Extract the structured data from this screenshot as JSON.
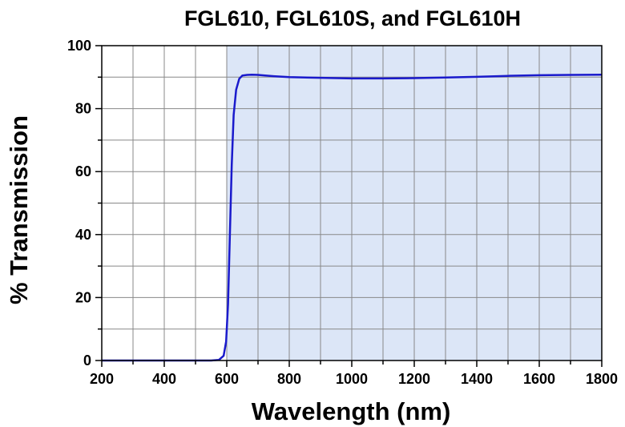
{
  "chart_data": {
    "type": "line",
    "title": "FGL610, FGL610S, and FGL610H",
    "xlabel": "Wavelength (nm)",
    "ylabel": "% Transmission",
    "xlim": [
      200,
      1800
    ],
    "ylim": [
      0,
      100
    ],
    "xticks": [
      200,
      400,
      600,
      800,
      1000,
      1200,
      1400,
      1600,
      1800
    ],
    "yticks": [
      0,
      20,
      40,
      60,
      80,
      100
    ],
    "grid": true,
    "shaded_region": {
      "x_start": 600,
      "x_end": 1800,
      "color": "#dce6f7"
    },
    "series": [
      {
        "color": "#1a1acc",
        "x": [
          200,
          400,
          550,
          575,
          590,
          598,
          604,
          610,
          616,
          622,
          630,
          640,
          650,
          665,
          680,
          700,
          750,
          800,
          900,
          1000,
          1100,
          1200,
          1300,
          1400,
          1500,
          1600,
          1700,
          1800
        ],
        "y": [
          0,
          0,
          0,
          0.2,
          1.5,
          6,
          18,
          40,
          62,
          78,
          86,
          89.5,
          90.5,
          90.7,
          90.8,
          90.7,
          90.3,
          90.0,
          89.8,
          89.6,
          89.6,
          89.7,
          89.9,
          90.1,
          90.4,
          90.6,
          90.7,
          90.8
        ]
      }
    ]
  }
}
